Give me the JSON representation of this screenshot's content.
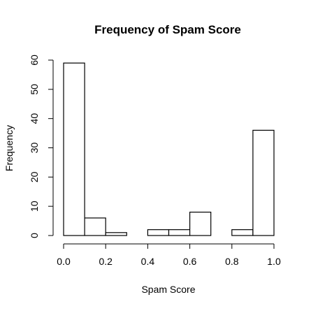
{
  "chart_data": {
    "type": "bar",
    "title": "Frequency of Spam Score",
    "xlabel": "Spam Score",
    "ylabel": "Frequency",
    "bins": [
      {
        "start": 0.0,
        "end": 0.1,
        "count": 59
      },
      {
        "start": 0.1,
        "end": 0.2,
        "count": 6
      },
      {
        "start": 0.2,
        "end": 0.3,
        "count": 1
      },
      {
        "start": 0.3,
        "end": 0.4,
        "count": 0
      },
      {
        "start": 0.4,
        "end": 0.5,
        "count": 2
      },
      {
        "start": 0.5,
        "end": 0.6,
        "count": 2
      },
      {
        "start": 0.6,
        "end": 0.7,
        "count": 8
      },
      {
        "start": 0.7,
        "end": 0.8,
        "count": 0
      },
      {
        "start": 0.8,
        "end": 0.9,
        "count": 2
      },
      {
        "start": 0.9,
        "end": 1.0,
        "count": 36
      }
    ],
    "xlim": [
      0.0,
      1.0
    ],
    "ylim": [
      0,
      60
    ],
    "x_ticks": [
      0.0,
      0.2,
      0.4,
      0.6,
      0.8,
      1.0
    ],
    "x_tick_labels": [
      "0.0",
      "0.2",
      "0.4",
      "0.6",
      "0.8",
      "1.0"
    ],
    "y_ticks": [
      0,
      10,
      20,
      30,
      40,
      50,
      60
    ],
    "y_tick_labels": [
      "0",
      "10",
      "20",
      "30",
      "40",
      "50",
      "60"
    ],
    "grid": false,
    "legend": "none",
    "bar_fill": "#ffffff",
    "bar_stroke": "#000000"
  }
}
